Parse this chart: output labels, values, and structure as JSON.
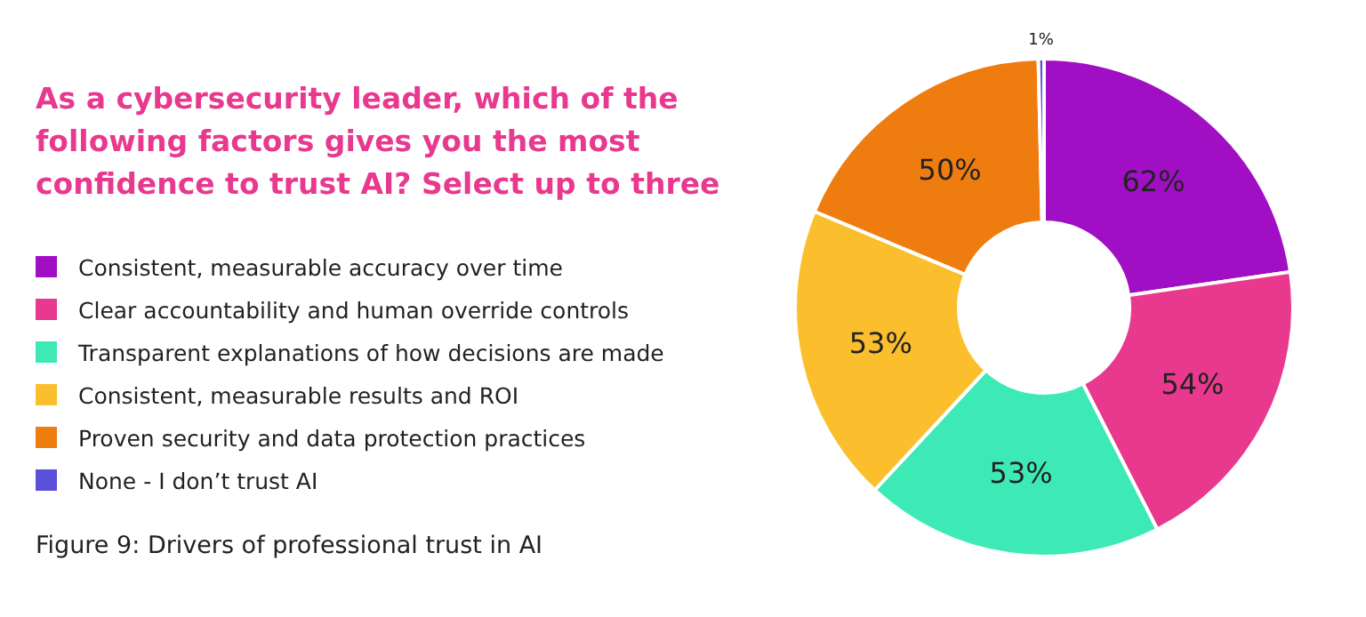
{
  "chart_data": {
    "type": "donut",
    "title": "As a cybersecurity leader, which of the following factors gives you the most confidence to trust AI? Select up to three",
    "categories": [
      "Consistent, measurable accuracy over time",
      "Clear accountability and human override controls",
      "Transparent explanations of how decisions are made",
      "Consistent, measurable results and ROI",
      "Proven security and data protection practices",
      "None - I don’t trust AI"
    ],
    "values": [
      62,
      54,
      53,
      53,
      50,
      1
    ],
    "value_labels": [
      "62%",
      "54%",
      "53%",
      "53%",
      "50%",
      "1%"
    ],
    "colors": [
      "#a10fc4",
      "#e8398f",
      "#3deab5",
      "#fbbf2e",
      "#ef7c0f",
      "#5a4fd8"
    ],
    "legend": "left",
    "annotations": [
      "Figure 9: Drivers of professional trust in AI"
    ]
  }
}
